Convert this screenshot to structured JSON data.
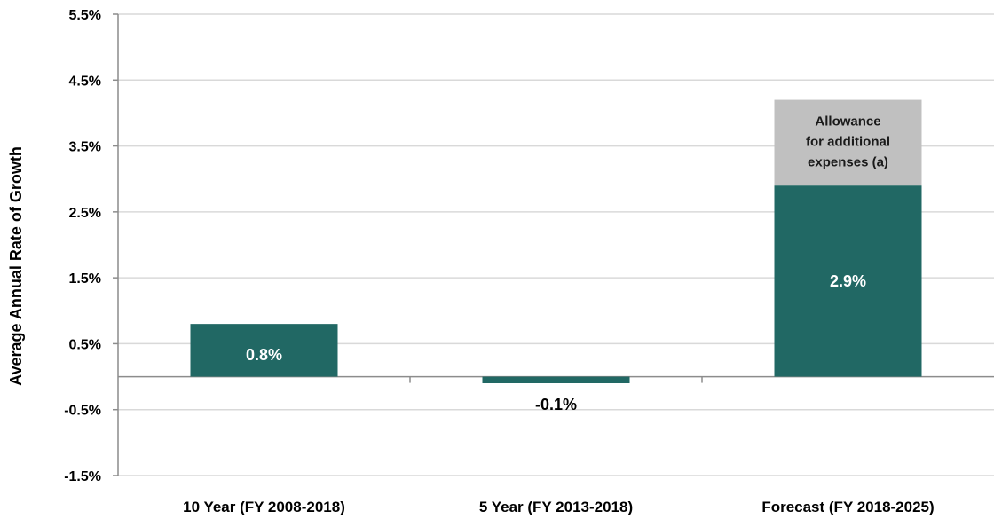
{
  "chart_data": {
    "type": "bar",
    "ylabel": "Average Annual Rate of Growth",
    "ylim": [
      -1.5,
      5.5
    ],
    "yticks": [
      "5.5%",
      "4.5%",
      "3.5%",
      "2.5%",
      "1.5%",
      "0.5%",
      "-0.5%",
      "-1.5%"
    ],
    "ytick_values": [
      5.5,
      4.5,
      3.5,
      2.5,
      1.5,
      0.5,
      -0.5,
      -1.5
    ],
    "categories": [
      "10 Year (FY 2008-2018)",
      "5 Year (FY 2013-2018)",
      "Forecast (FY 2018-2025)"
    ],
    "values": [
      0.8,
      -0.1,
      2.9
    ],
    "value_labels": [
      "0.8%",
      "-0.1%",
      "2.9%"
    ],
    "stacked_segment": {
      "category": "Forecast (FY 2018-2025)",
      "value": 1.3,
      "label_lines": [
        "Allowance",
        "for additional",
        "expenses (a)"
      ]
    },
    "grid": true,
    "colors": {
      "bar": "#216864",
      "allowance": "#c0c0c0",
      "grid": "#d9d9d9",
      "axis": "#8c8c8c"
    }
  }
}
